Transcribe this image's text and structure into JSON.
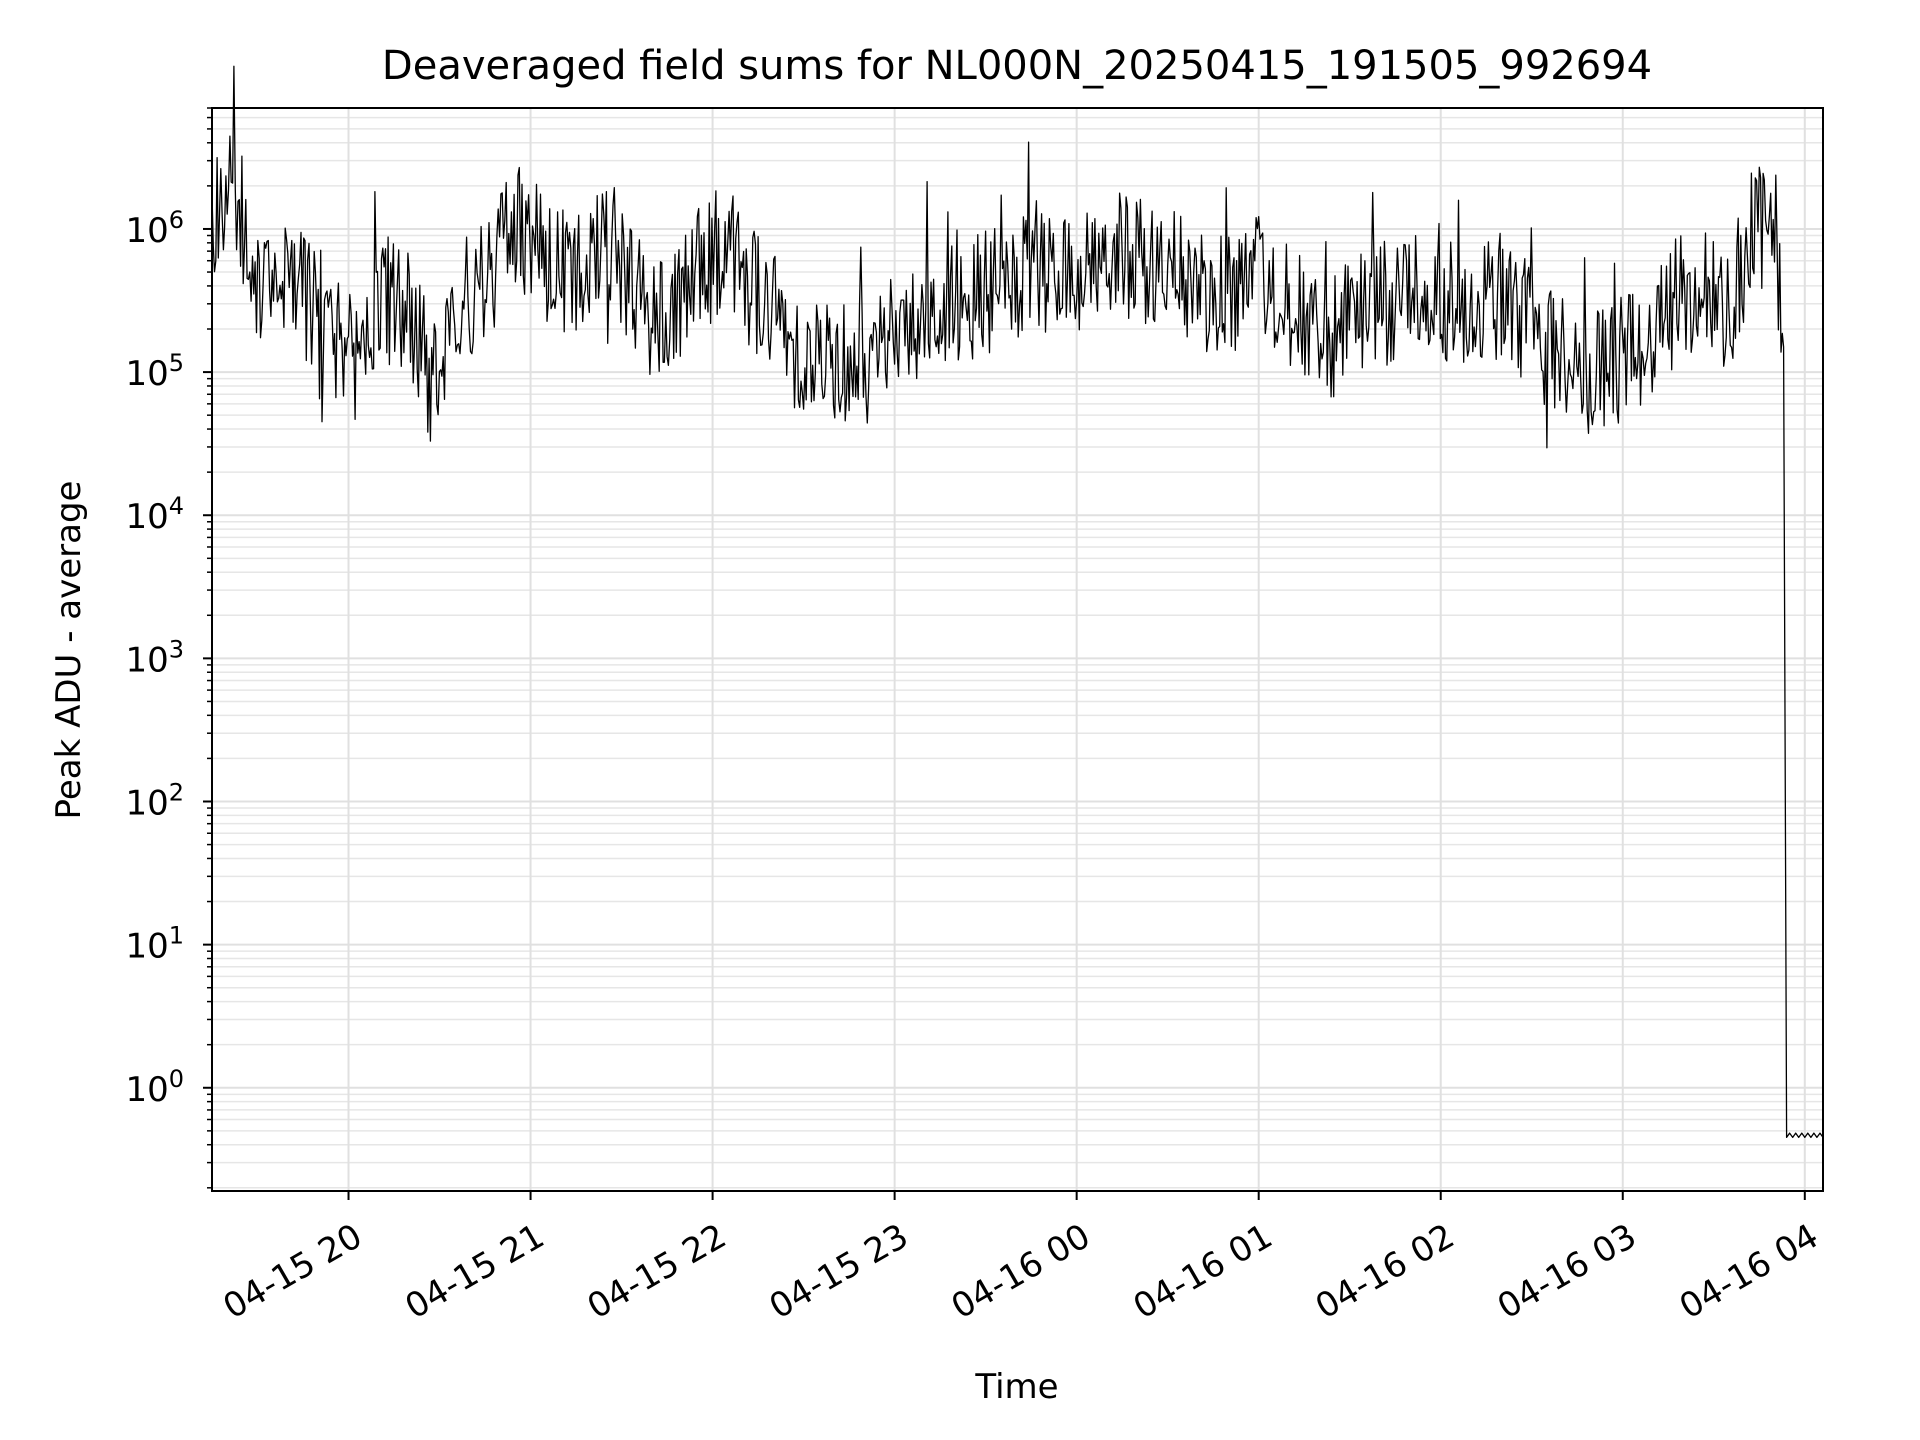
{
  "chart_data": {
    "type": "line",
    "title": "Deaveraged field sums for NL000N_20250415_191505_992694",
    "xlabel": "Time",
    "ylabel": "Peak ADU - average",
    "xscale": "time",
    "yscale": "log",
    "xlim": [
      "2025-04-15 19:15",
      "2025-04-16 04:06"
    ],
    "ylim": [
      0.19,
      7000000
    ],
    "grid": true,
    "line_color": "#000000",
    "x_ticks": [
      {
        "label": "04-15 20",
        "time": "2025-04-15 20:00"
      },
      {
        "label": "04-15 21",
        "time": "2025-04-15 21:00"
      },
      {
        "label": "04-15 22",
        "time": "2025-04-15 22:00"
      },
      {
        "label": "04-15 23",
        "time": "2025-04-15 23:00"
      },
      {
        "label": "04-16 00",
        "time": "2025-04-16 00:00"
      },
      {
        "label": "04-16 01",
        "time": "2025-04-16 01:00"
      },
      {
        "label": "04-16 02",
        "time": "2025-04-16 02:00"
      },
      {
        "label": "04-16 03",
        "time": "2025-04-16 03:00"
      },
      {
        "label": "04-16 04",
        "time": "2025-04-16 04:00"
      }
    ],
    "y_ticks": [
      {
        "base": "10",
        "exp": "0",
        "value": 1
      },
      {
        "base": "10",
        "exp": "1",
        "value": 10
      },
      {
        "base": "10",
        "exp": "2",
        "value": 100
      },
      {
        "base": "10",
        "exp": "3",
        "value": 1000
      },
      {
        "base": "10",
        "exp": "4",
        "value": 10000
      },
      {
        "base": "10",
        "exp": "5",
        "value": 100000
      },
      {
        "base": "10",
        "exp": "6",
        "value": 1000000
      }
    ],
    "series": [
      {
        "points": [
          [
            "2025-04-15 19:15",
            1400000
          ],
          [
            "2025-04-15 19:20",
            1700000
          ],
          [
            "2025-04-15 19:24",
            1500000
          ],
          [
            "2025-04-15 19:27",
            800000
          ],
          [
            "2025-04-15 19:31",
            350000
          ],
          [
            "2025-04-15 19:40",
            400000
          ],
          [
            "2025-04-15 19:50",
            300000
          ],
          [
            "2025-04-15 19:55",
            150000
          ],
          [
            "2025-04-15 20:00",
            120000
          ],
          [
            "2025-04-15 20:10",
            350000
          ],
          [
            "2025-04-15 20:20",
            250000
          ],
          [
            "2025-04-15 20:27",
            90000
          ],
          [
            "2025-04-15 20:35",
            300000
          ],
          [
            "2025-04-15 20:45",
            400000
          ],
          [
            "2025-04-15 20:55",
            1200000
          ],
          [
            "2025-04-15 21:05",
            600000
          ],
          [
            "2025-04-15 21:15",
            500000
          ],
          [
            "2025-04-15 21:25",
            900000
          ],
          [
            "2025-04-15 21:35",
            350000
          ],
          [
            "2025-04-15 21:45",
            250000
          ],
          [
            "2025-04-15 21:55",
            500000
          ],
          [
            "2025-04-15 22:05",
            700000
          ],
          [
            "2025-04-15 22:15",
            350000
          ],
          [
            "2025-04-15 22:30",
            130000
          ],
          [
            "2025-04-15 22:45",
            120000
          ],
          [
            "2025-04-15 23:00",
            200000
          ],
          [
            "2025-04-15 23:15",
            280000
          ],
          [
            "2025-04-15 23:30",
            350000
          ],
          [
            "2025-04-15 23:45",
            450000
          ],
          [
            "2025-04-16 00:00",
            500000
          ],
          [
            "2025-04-16 00:15",
            650000
          ],
          [
            "2025-04-16 00:30",
            500000
          ],
          [
            "2025-04-16 00:45",
            350000
          ],
          [
            "2025-04-16 01:00",
            450000
          ],
          [
            "2025-04-16 01:10",
            350000
          ],
          [
            "2025-04-16 01:20",
            150000
          ],
          [
            "2025-04-16 01:35",
            250000
          ],
          [
            "2025-04-16 01:50",
            400000
          ],
          [
            "2025-04-16 02:05",
            300000
          ],
          [
            "2025-04-16 02:20",
            350000
          ],
          [
            "2025-04-16 02:35",
            160000
          ],
          [
            "2025-04-16 02:50",
            90000
          ],
          [
            "2025-04-16 03:05",
            150000
          ],
          [
            "2025-04-16 03:20",
            350000
          ],
          [
            "2025-04-16 03:35",
            300000
          ],
          [
            "2025-04-16 03:45",
            1000000
          ],
          [
            "2025-04-16 03:50",
            1300000
          ],
          [
            "2025-04-16 03:53",
            150000
          ],
          [
            "2025-04-16 03:54",
            0.45
          ],
          [
            "2025-04-16 04:06",
            0.45
          ]
        ]
      }
    ]
  }
}
